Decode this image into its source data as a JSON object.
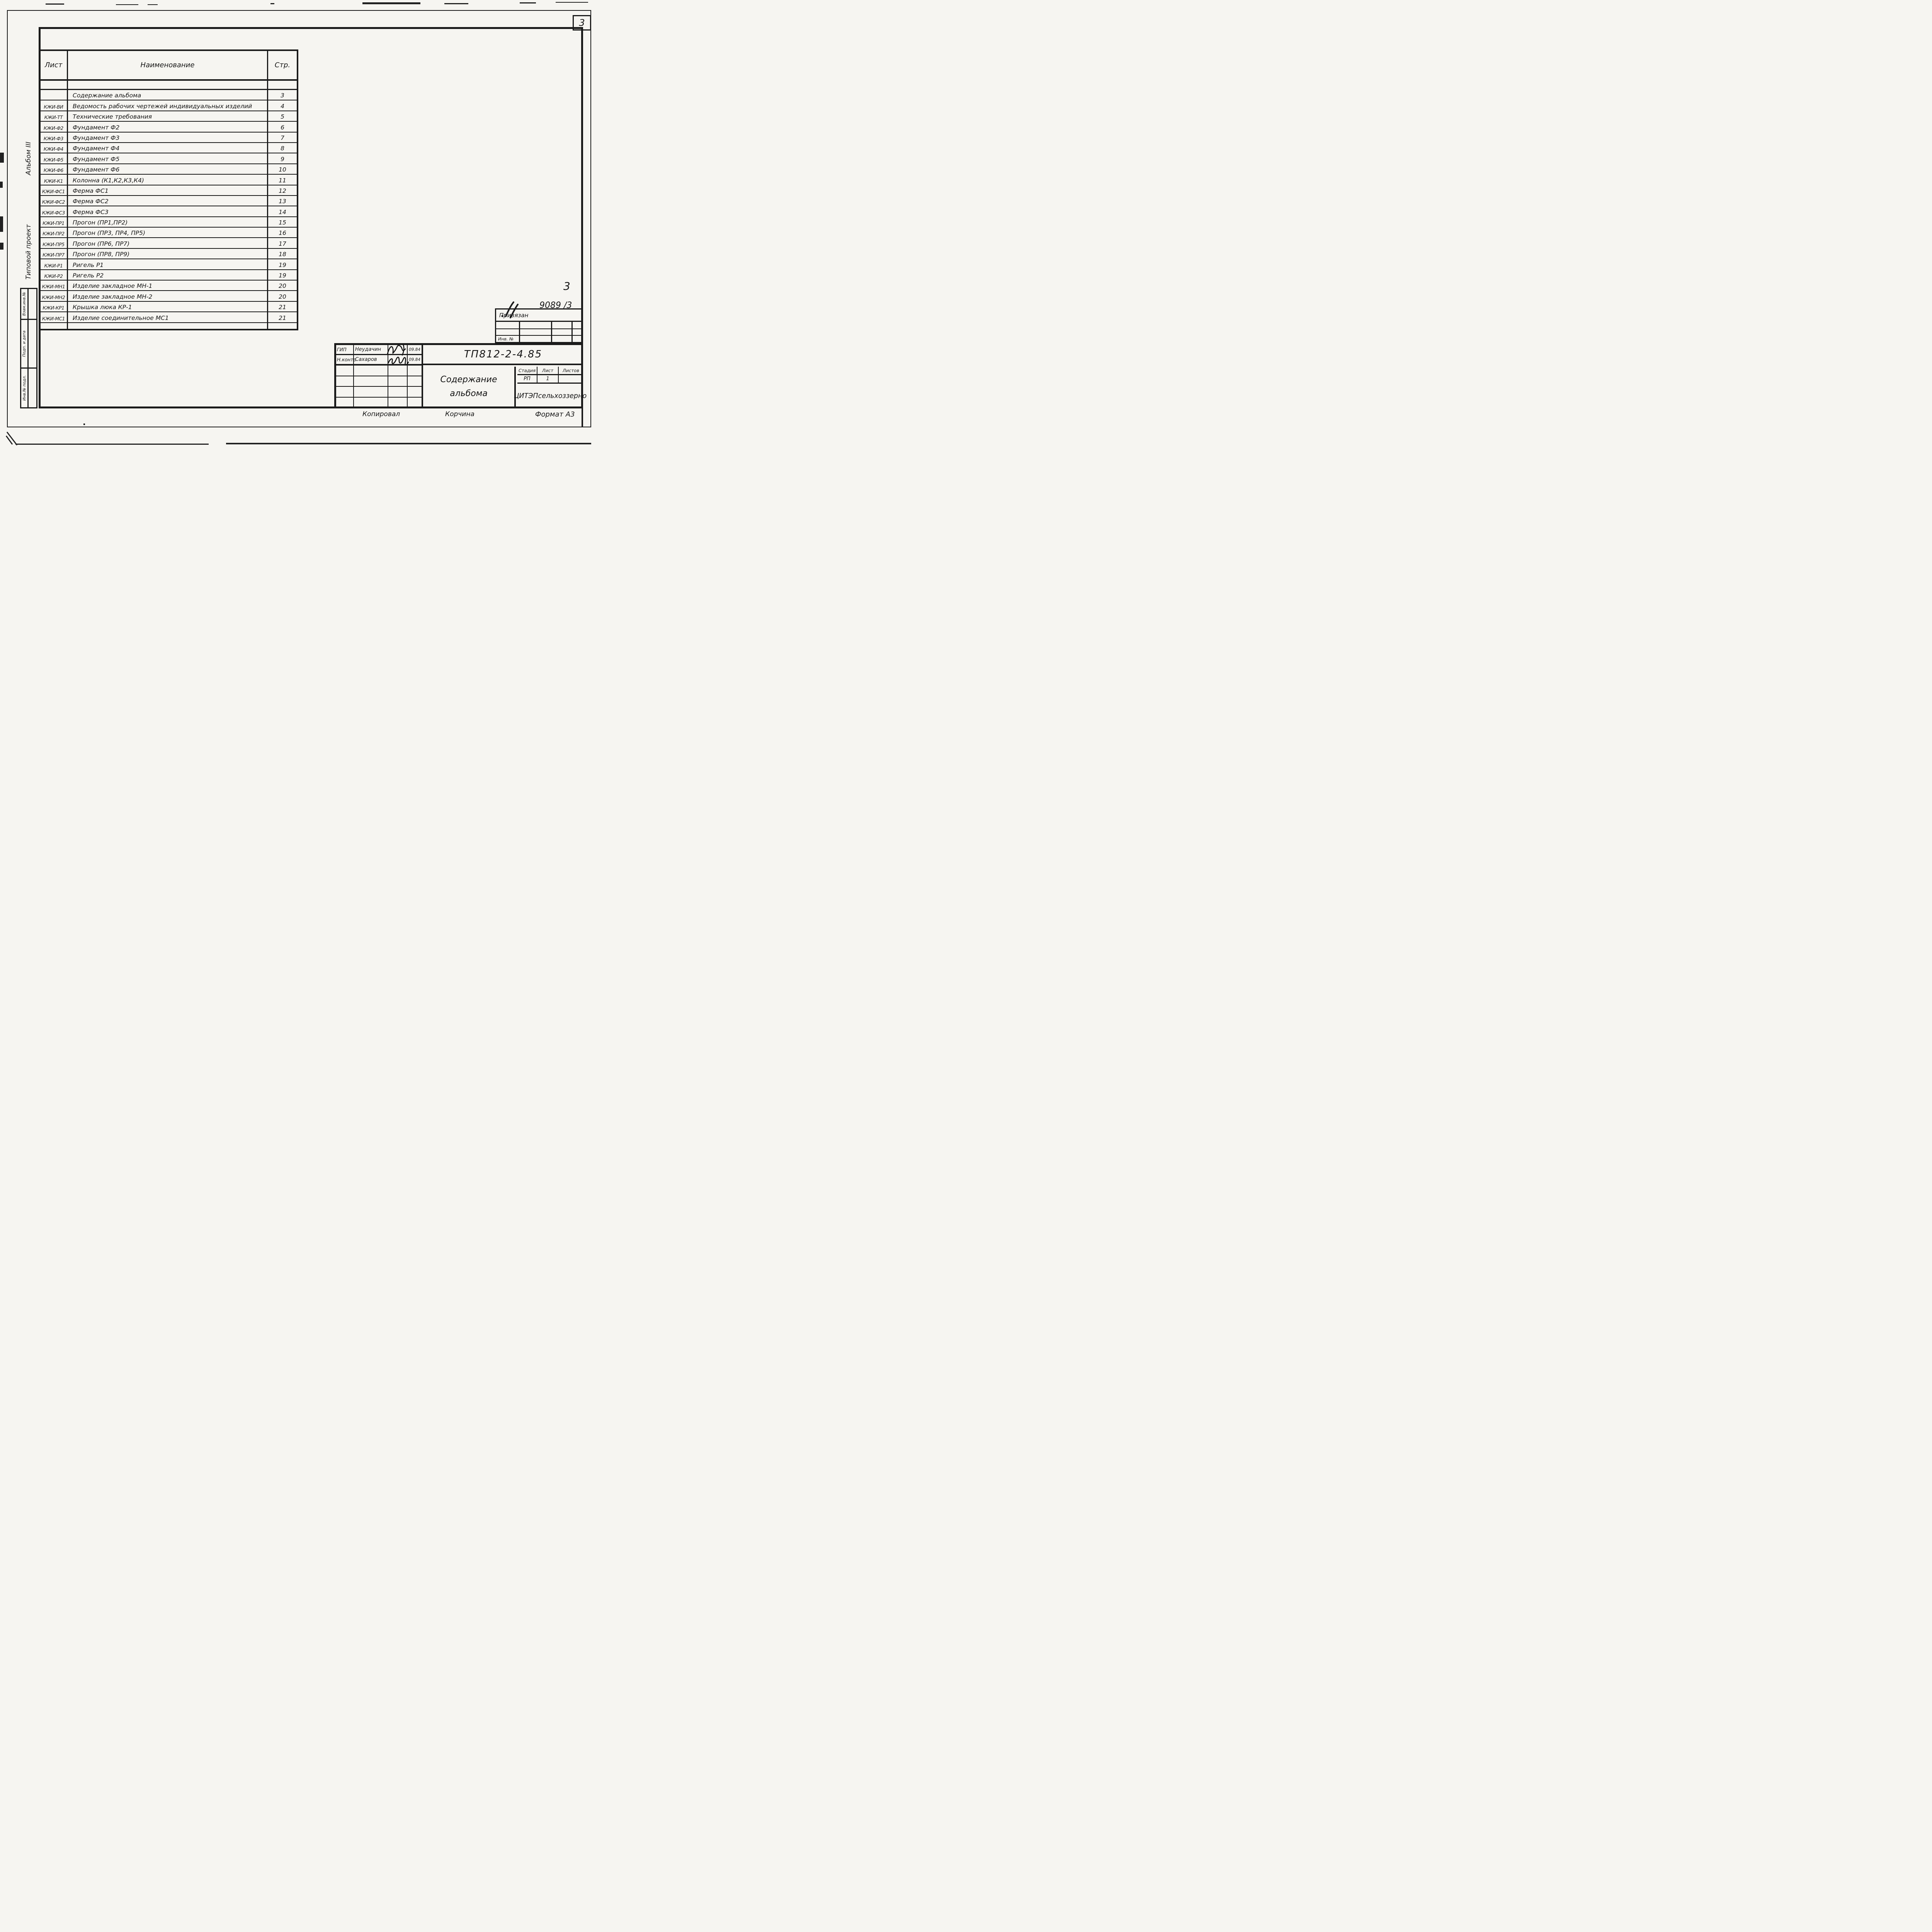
{
  "page": {
    "corner_number": "3"
  },
  "table": {
    "headers": {
      "sheet": "Лист",
      "name": "Наименование",
      "page": "Стр."
    },
    "rows": [
      {
        "sheet": "",
        "name": "Содержание альбома",
        "page": "3"
      },
      {
        "sheet": "КЖИ-ВИ",
        "name": "Ведомость рабочих чертежей индивидуальных изделий",
        "page": "4"
      },
      {
        "sheet": "КЖИ-ТТ",
        "name": "Технические требования",
        "page": "5"
      },
      {
        "sheet": "КЖИ-Ф2",
        "name": "Фундамент Ф2",
        "page": "6"
      },
      {
        "sheet": "КЖИ-Ф3",
        "name": "Фундамент Ф3",
        "page": "7"
      },
      {
        "sheet": "КЖИ-Ф4",
        "name": "Фундамент Ф4",
        "page": "8"
      },
      {
        "sheet": "КЖИ-Ф5",
        "name": "Фундамент Ф5",
        "page": "9"
      },
      {
        "sheet": "КЖИ-Ф6",
        "name": "Фундамент Ф6",
        "page": "10"
      },
      {
        "sheet": "КЖИ-К1",
        "name": "Колонна (К1,К2,К3,К4)",
        "page": "11"
      },
      {
        "sheet": "КЖИ-ФС1",
        "name": "Ферма ФС1",
        "page": "12"
      },
      {
        "sheet": "КЖИ-ФС2",
        "name": "Ферма ФС2",
        "page": "13"
      },
      {
        "sheet": "КЖИ-ФС3",
        "name": "Ферма ФС3",
        "page": "14"
      },
      {
        "sheet": "КЖИ-ПР1",
        "name": "Прогон (ПР1,ПР2)",
        "page": "15"
      },
      {
        "sheet": "КЖИ-ПР2",
        "name": "Прогон (ПР3, ПР4, ПР5)",
        "page": "16"
      },
      {
        "sheet": "КЖИ-ПР5",
        "name": "Прогон (ПР6, ПР7)",
        "page": "17"
      },
      {
        "sheet": "КЖИ-ПР7",
        "name": "Прогон (ПР8, ПР9)",
        "page": "18"
      },
      {
        "sheet": "КЖИ-Р1",
        "name": "Ригель Р1",
        "page": "19"
      },
      {
        "sheet": "КЖИ-Р2",
        "name": "Ригель Р2",
        "page": "19"
      },
      {
        "sheet": "КЖИ-МН1",
        "name": "Изделие закладное МН-1",
        "page": "20"
      },
      {
        "sheet": "КЖИ-МН2",
        "name": "Изделие закладное МН-2",
        "page": "20"
      },
      {
        "sheet": "КЖИ-КР1",
        "name": "Крышка люка КР-1",
        "page": "21"
      },
      {
        "sheet": "КЖИ-МС1",
        "name": "Изделие соединительное МС1",
        "page": "21"
      }
    ]
  },
  "margin": {
    "album": "Альбом III",
    "project": "Типовой проект",
    "boxes": [
      "Взам.инв.№",
      "Подп. и дата",
      "Инв.№ подл."
    ]
  },
  "binding": {
    "page_number": "3",
    "ref_number": "9089 /3",
    "label": "Привязан",
    "inv_label": "Инв. №"
  },
  "title_block": {
    "code": "ТП812-2-4.85",
    "title_line1": "Содержание",
    "title_line2": "альбома",
    "org": "ЦИТЭПсельхоззерно",
    "stage_label": "Стадия",
    "sheet_label": "Лист",
    "sheets_label": "Листов",
    "stage": "РП",
    "sheet_no": "1",
    "sheets_total": "",
    "signers": [
      {
        "role": "ГИП",
        "name": "Неудачин",
        "date": "09.84"
      },
      {
        "role": "Н.контр",
        "name": "Сахаров",
        "date": "09.84"
      }
    ]
  },
  "footer": {
    "copied_label": "Копировал",
    "copied_by": "Корчина",
    "format_label": "Формат А3"
  }
}
